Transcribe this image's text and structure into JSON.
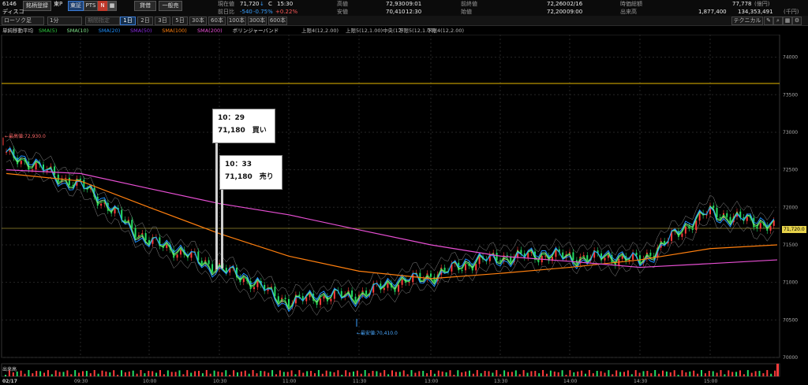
{
  "header": {
    "code": "6146",
    "name": "ディスコ",
    "brand_search_btn": "銘柄登録",
    "market": "東P",
    "tab_tosho": "東証",
    "tab_pts": "PTS",
    "badge_n": "N",
    "chart_type": "ローソク足",
    "interval": "1分",
    "period_placeholder": "期間指定",
    "trade_btn": "貸借",
    "general_btn": "一般売",
    "quote": {
      "current_label": "現在値",
      "current_value": "71,720",
      "current_arrow": "↓",
      "current_flag": "C",
      "current_time": "15:30",
      "prev_diff_label": "前日比",
      "prev_diff_value": "-540",
      "prev_diff_pct": "-0.75%",
      "prev_diff_extra": "+0.22%",
      "high_label": "高値",
      "high_value": "72,930",
      "high_time": "09:01",
      "low_label": "安値",
      "low_value": "70,410",
      "low_time": "12:30",
      "prev_close_label": "前終値",
      "prev_close_value": "72,260",
      "prev_close_date": "02/16",
      "open_label": "始値",
      "open_value": "72,200",
      "open_time": "09:00",
      "mcap_label": "時価総額",
      "mcap_value": "77,778",
      "mcap_unit": "(億円)",
      "volume_label": "出来高",
      "volume_value": "1,877,400",
      "turnover_value": "134,353,491",
      "turnover_unit": "(千円)"
    },
    "periods": [
      "1日",
      "2日",
      "3日",
      "5日",
      "30本",
      "60本",
      "100本",
      "300本",
      "600本"
    ],
    "active_period": "1日",
    "technical_btn": "テクニカル"
  },
  "legend": {
    "title": "単純移動平均",
    "items": [
      {
        "label": "SMA(5)",
        "color": "#2ecc40"
      },
      {
        "label": "SMA(10)",
        "color": "#7fe38a"
      },
      {
        "label": "SMA(20)",
        "color": "#1e90ff"
      },
      {
        "label": "SMA(50)",
        "color": "#8a2be2"
      },
      {
        "label": "SMA(100)",
        "color": "#ff7f0e"
      },
      {
        "label": "SMA(200)",
        "color": "#e84fd4"
      },
      {
        "label": "ボリンジャーバンド",
        "color": "#dddddd"
      }
    ],
    "bb_items": [
      "上限4(12,2.00)",
      "上限5(12,1.00)",
      "中央(12)",
      "下限5(12,1.00)",
      "下限4(12,2.00)"
    ]
  },
  "annotations": {
    "buy_time": "10：29",
    "buy_text": "71,180　買い",
    "sell_time": "10：33",
    "sell_text": "71,180　売り",
    "high_marker": "←最高値:72,930.0",
    "low_marker": "←最安値:70,410.0",
    "price_tag": "71,720.0"
  },
  "volume_label": "出来高",
  "x_date": "02/17",
  "chart_data": {
    "type": "line",
    "x": [
      "09:00",
      "09:30",
      "10:00",
      "10:30",
      "11:00",
      "11:30",
      "13:00",
      "13:30",
      "14:00",
      "14:30",
      "15:00",
      "15:25"
    ],
    "ylim": [
      70000,
      74300
    ],
    "yticks": [
      70000,
      70500,
      71000,
      71500,
      72000,
      72500,
      73000,
      73500,
      74000
    ],
    "xticks": [
      "09:30",
      "10:00",
      "10:30",
      "11:00",
      "11:30",
      "13:00",
      "13:30",
      "14:00",
      "14:30",
      "15:00"
    ],
    "price_close": [
      72700,
      72300,
      71550,
      71200,
      70750,
      70850,
      71100,
      71350,
      71350,
      71300,
      71950,
      71720
    ],
    "series": [
      {
        "name": "SMA(100)",
        "values": [
          72450,
          72350,
          72000,
          71650,
          71350,
          71150,
          71050,
          71120,
          71200,
          71300,
          71450,
          71500
        ]
      },
      {
        "name": "SMA(200)",
        "values": [
          72500,
          72450,
          72250,
          72050,
          71900,
          71700,
          71500,
          71350,
          71280,
          71200,
          71250,
          71300
        ]
      }
    ],
    "hline": 73650,
    "current_line": 71720,
    "high": 72930,
    "low": 70410
  }
}
